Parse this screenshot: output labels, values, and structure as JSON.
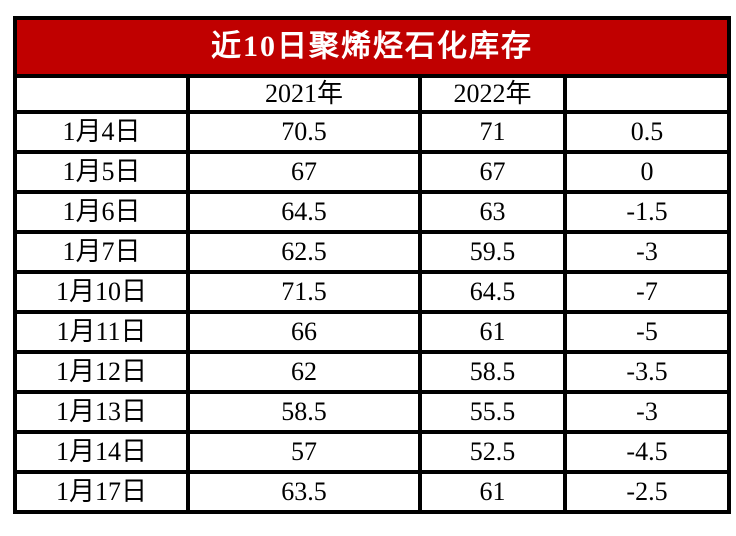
{
  "title": "近10日聚烯烃石化库存",
  "colors": {
    "title_bg": "#C00000",
    "title_text": "#FFFFFF",
    "border": "#000000",
    "cell_bg": "#FFFFFF",
    "cell_text": "#000000"
  },
  "header": [
    "",
    "2021年",
    "2022年",
    ""
  ],
  "chart_data": {
    "type": "table",
    "title": "近10日聚烯烃石化库存",
    "columns": [
      "",
      "2021年",
      "2022年",
      ""
    ],
    "rows": [
      [
        "1月4日",
        "70.5",
        "71",
        "0.5"
      ],
      [
        "1月5日",
        "67",
        "67",
        "0"
      ],
      [
        "1月6日",
        "64.5",
        "63",
        "-1.5"
      ],
      [
        "1月7日",
        "62.5",
        "59.5",
        "-3"
      ],
      [
        "1月10日",
        "71.5",
        "64.5",
        "-7"
      ],
      [
        "1月11日",
        "66",
        "61",
        "-5"
      ],
      [
        "1月12日",
        "62",
        "58.5",
        "-3.5"
      ],
      [
        "1月13日",
        "58.5",
        "55.5",
        "-3"
      ],
      [
        "1月14日",
        "57",
        "52.5",
        "-4.5"
      ],
      [
        "1月17日",
        "63.5",
        "61",
        "-2.5"
      ]
    ]
  }
}
